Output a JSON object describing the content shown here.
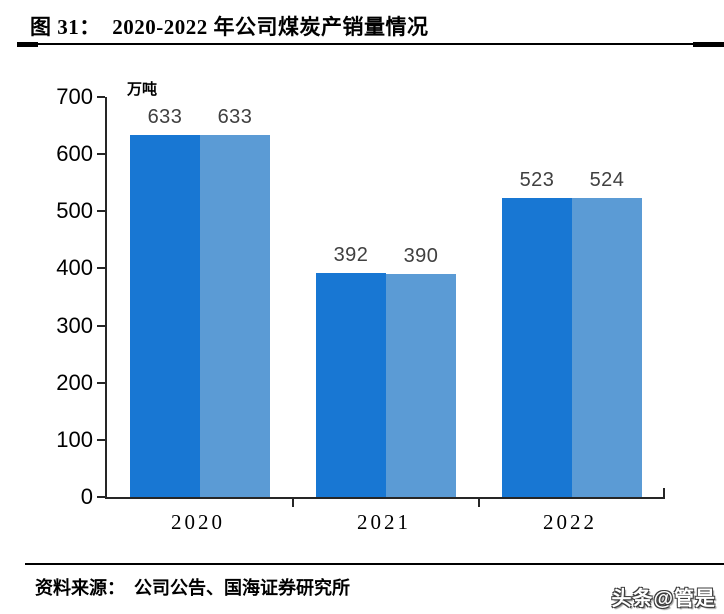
{
  "figure": {
    "title": "图 31：  2020-2022 年公司煤炭产销量情况",
    "source_note": "资料来源：  公司公告、国海证券研究所",
    "watermark": "头条@管是"
  },
  "chart_data": {
    "type": "bar",
    "title": "2020-2022 年公司煤炭产销量情况",
    "unit_label": "万吨",
    "categories": [
      "2020",
      "2021",
      "2022"
    ],
    "series": [
      {
        "color": "#1877D3",
        "values": [
          633,
          392,
          523
        ]
      },
      {
        "color": "#5B9BD5",
        "values": [
          633,
          390,
          524
        ]
      }
    ],
    "ylim": [
      0,
      700
    ],
    "ytick_step": 100,
    "grid": false,
    "legend": "none",
    "data_labels": true,
    "label_color": "#404040",
    "axis_color": "#262626"
  }
}
